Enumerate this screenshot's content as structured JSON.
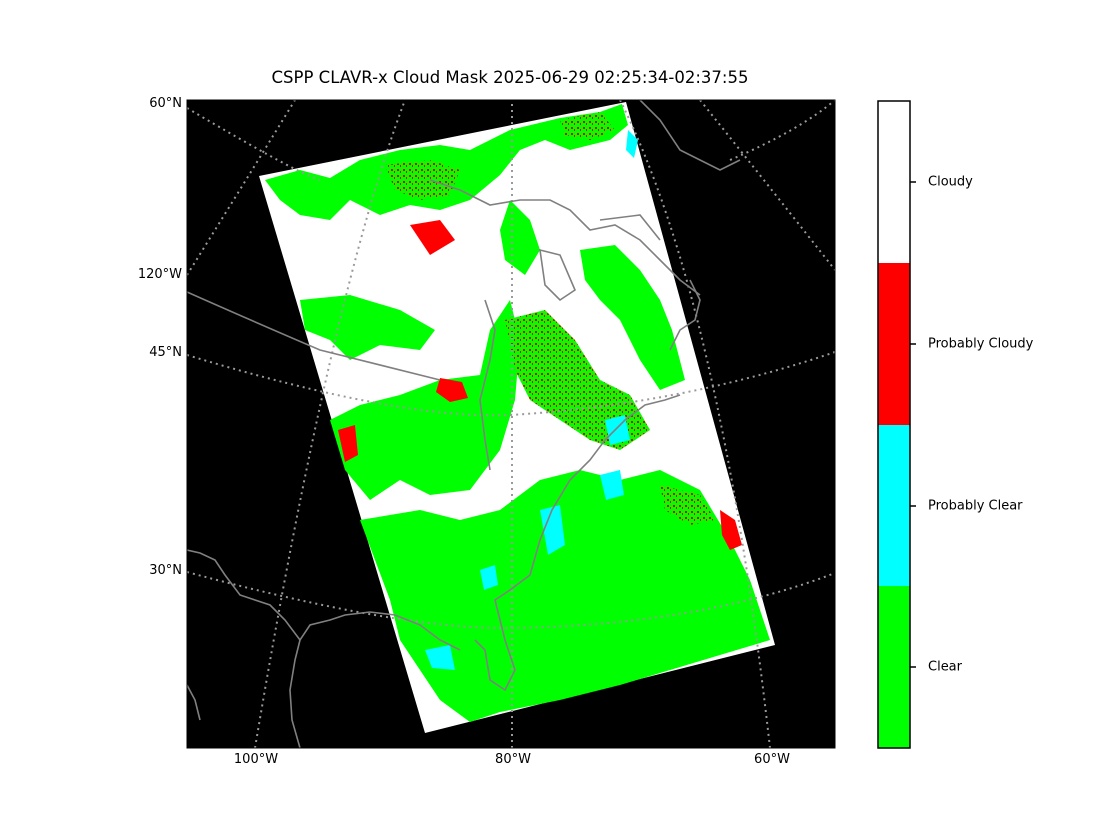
{
  "figure": {
    "title": "CSPP CLAVR-x Cloud Mask 2025-06-29 02:25:34-02:37:55"
  },
  "map": {
    "background": "#000000",
    "coastline_color": "#808080",
    "gridline_style": "dotted",
    "lat_labels": [
      "60°N",
      "120°W",
      "45°N",
      "30°N"
    ],
    "lon_labels": [
      "100°W",
      "80°W",
      "60°W"
    ]
  },
  "legend": {
    "categories": [
      {
        "label": "Cloudy",
        "color": "#ffffff"
      },
      {
        "label": "Probably Cloudy",
        "color": "#ff0000"
      },
      {
        "label": "Probably Clear",
        "color": "#00ffff"
      },
      {
        "label": "Clear",
        "color": "#00ff00"
      }
    ]
  }
}
